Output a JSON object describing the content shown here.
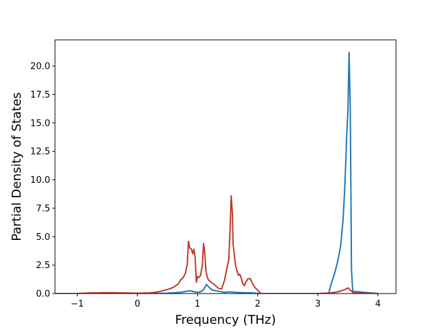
{
  "chart_data": {
    "type": "line",
    "title": "",
    "xlabel": "Frequency (THz)",
    "ylabel": "Partial Density of States",
    "xlim": [
      -1.37,
      4.3
    ],
    "ylim": [
      0,
      22.3
    ],
    "grid": false,
    "legend": "none",
    "x_ticks": [
      -1,
      0,
      1,
      2,
      3,
      4
    ],
    "x_tick_labels": [
      "−1",
      "0",
      "1",
      "2",
      "3",
      "4"
    ],
    "y_ticks": [
      0,
      2.5,
      5,
      7.5,
      10,
      12.5,
      15,
      17.5,
      20
    ],
    "y_tick_labels": [
      "0.0",
      "2.5",
      "5.0",
      "7.5",
      "10.0",
      "12.5",
      "15.0",
      "17.5",
      "20.0"
    ],
    "series": [
      {
        "color": "#1f77b4",
        "x": [
          -1.35,
          -1.0,
          -0.5,
          0.0,
          0.3,
          0.5,
          0.7,
          0.8,
          0.88,
          0.95,
          1.0,
          1.05,
          1.1,
          1.15,
          1.2,
          1.25,
          1.35,
          1.45,
          1.52,
          1.58,
          1.7,
          1.9,
          2.05,
          2.5,
          3.0,
          3.18,
          3.22,
          3.28,
          3.33,
          3.38,
          3.42,
          3.45,
          3.48,
          3.5,
          3.52,
          3.54,
          3.56,
          3.58,
          4.0
        ],
        "y": [
          0,
          0,
          0,
          0,
          0,
          0.03,
          0.1,
          0.18,
          0.25,
          0.15,
          0.12,
          0.15,
          0.35,
          0.8,
          0.5,
          0.3,
          0.2,
          0.1,
          0.15,
          0.12,
          0.08,
          0.05,
          0,
          0,
          0,
          0,
          0.8,
          1.8,
          2.8,
          4.2,
          6.5,
          9.5,
          13.8,
          16,
          21.2,
          16,
          2.1,
          0.2,
          0
        ]
      },
      {
        "color": "#c0392b",
        "x": [
          -1.35,
          -1.0,
          -0.8,
          -0.5,
          -0.2,
          0.0,
          0.2,
          0.35,
          0.5,
          0.6,
          0.68,
          0.72,
          0.76,
          0.8,
          0.83,
          0.85,
          0.87,
          0.9,
          0.92,
          0.94,
          0.96,
          0.98,
          1.0,
          1.02,
          1.05,
          1.08,
          1.1,
          1.12,
          1.14,
          1.16,
          1.18,
          1.2,
          1.25,
          1.3,
          1.35,
          1.4,
          1.45,
          1.48,
          1.5,
          1.52,
          1.54,
          1.56,
          1.58,
          1.59,
          1.61,
          1.63,
          1.65,
          1.68,
          1.7,
          1.72,
          1.75,
          1.78,
          1.8,
          1.84,
          1.88,
          1.92,
          1.96,
          2.0,
          2.05,
          2.5,
          3.0,
          3.2,
          3.3,
          3.4,
          3.45,
          3.5,
          3.55,
          3.6,
          4.0
        ],
        "y": [
          0,
          0,
          0.05,
          0.08,
          0.05,
          0.03,
          0.05,
          0.15,
          0.35,
          0.55,
          0.85,
          1.2,
          1.4,
          1.8,
          2.6,
          4.6,
          4.0,
          3.9,
          3.5,
          3.9,
          3.2,
          1.0,
          1.5,
          1.4,
          1.6,
          2.5,
          4.4,
          3.6,
          2.0,
          1.5,
          1.2,
          1.1,
          0.9,
          0.7,
          0.45,
          0.4,
          1.2,
          2.0,
          2.5,
          3.0,
          5.5,
          8.6,
          7.0,
          4.4,
          3.5,
          2.5,
          2.1,
          1.6,
          1.7,
          1.5,
          0.9,
          0.7,
          1.0,
          1.3,
          1.3,
          0.8,
          0.5,
          0.3,
          0,
          0,
          0,
          0.05,
          0.12,
          0.25,
          0.35,
          0.5,
          0.25,
          0.05,
          0
        ]
      }
    ]
  }
}
